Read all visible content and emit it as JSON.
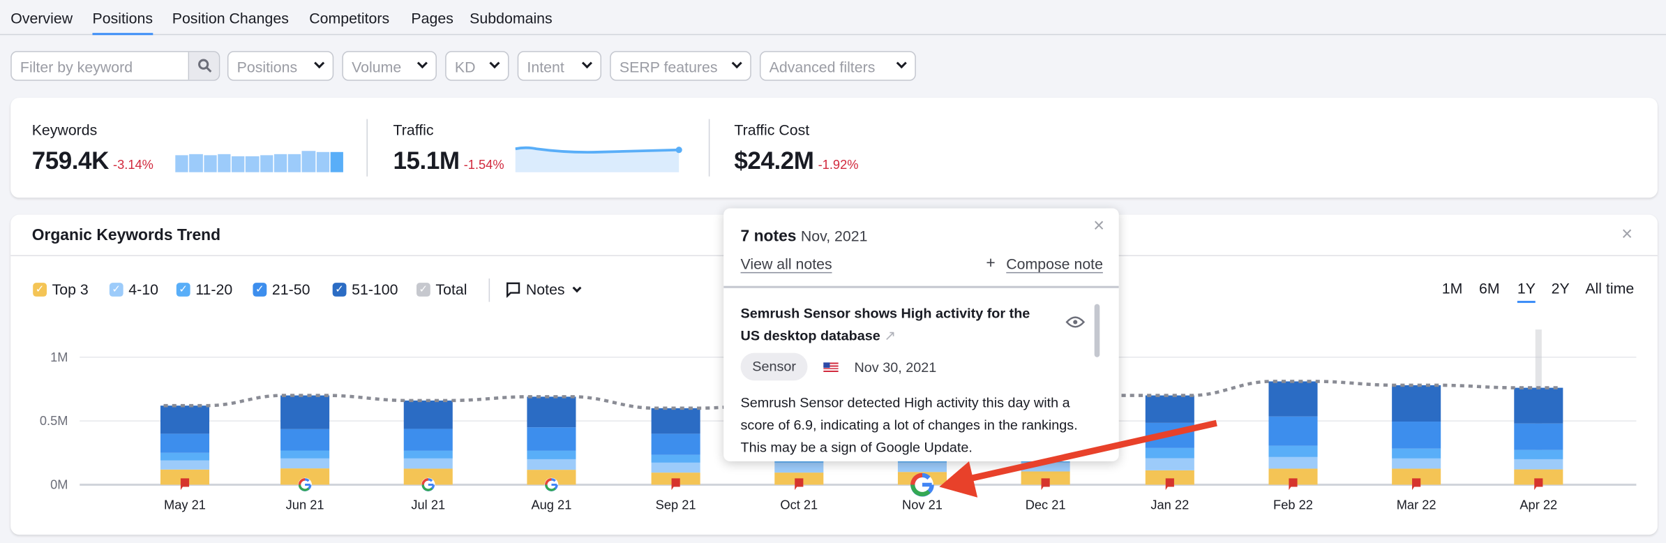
{
  "tabs": [
    "Overview",
    "Positions",
    "Position Changes",
    "Competitors",
    "Pages",
    "Subdomains"
  ],
  "active_tab": "Positions",
  "filters": {
    "search_placeholder": "Filter by keyword",
    "dropdowns": [
      "Positions",
      "Volume",
      "KD",
      "Intent",
      "SERP features",
      "Advanced filters"
    ]
  },
  "summary": {
    "keywords": {
      "label": "Keywords",
      "value": "759.4K",
      "change": "-3.14%",
      "spark": [
        0.72,
        0.78,
        0.74,
        0.76,
        0.68,
        0.7,
        0.74,
        0.78,
        0.77,
        0.9,
        0.88,
        0.85
      ]
    },
    "traffic": {
      "label": "Traffic",
      "value": "15.1M",
      "change": "-1.54%"
    },
    "traffic_cost": {
      "label": "Traffic Cost",
      "value": "$24.2M",
      "change": "-1.92%"
    }
  },
  "trend": {
    "title": "Organic Keywords Trend",
    "legend": [
      {
        "label": "Top 3",
        "color": "#f4c455"
      },
      {
        "label": "4-10",
        "color": "#9ccbfa"
      },
      {
        "label": "11-20",
        "color": "#59aef8"
      },
      {
        "label": "21-50",
        "color": "#3d8eed"
      },
      {
        "label": "51-100",
        "color": "#2b6cc4"
      },
      {
        "label": "Total",
        "color": "#c6c8ce"
      }
    ],
    "notes_label": "Notes",
    "ranges": [
      "1M",
      "6M",
      "1Y",
      "2Y",
      "All time"
    ],
    "active_range": "1Y"
  },
  "chart_data": {
    "type": "bar",
    "stacked": true,
    "categories": [
      "May 21",
      "Jun 21",
      "Jul 21",
      "Aug 21",
      "Sep 21",
      "Oct 21",
      "Nov 21",
      "Dec 21",
      "Jan 22",
      "Feb 22",
      "Mar 22",
      "Apr 22"
    ],
    "yticks": [
      "0M",
      "0.5M",
      "1M"
    ],
    "ylim": [
      0,
      1000000
    ],
    "series": [
      {
        "name": "Top 3",
        "values": [
          119000,
          128000,
          126000,
          117000,
          95000,
          95000,
          100000,
          104000,
          113000,
          126000,
          126000,
          120000
        ]
      },
      {
        "name": "4-10",
        "values": [
          71000,
          78000,
          80000,
          83000,
          78000,
          78000,
          75000,
          71000,
          95000,
          91000,
          80000,
          80000
        ]
      },
      {
        "name": "11-20",
        "values": [
          60000,
          62000,
          60000,
          66000,
          61000,
          60000,
          62000,
          64000,
          80000,
          88000,
          77000,
          72000
        ]
      },
      {
        "name": "21-50",
        "values": [
          150000,
          168000,
          172000,
          184000,
          166000,
          170000,
          175000,
          190000,
          197000,
          230000,
          212000,
          208000
        ]
      },
      {
        "name": "51-100",
        "values": [
          220000,
          264000,
          222000,
          240000,
          200000,
          227000,
          248000,
          271000,
          215000,
          275000,
          285000,
          280000
        ]
      }
    ],
    "total": [
      620000,
      700000,
      660000,
      690000,
      600000,
      630000,
      660000,
      700000,
      700000,
      810000,
      780000,
      760000
    ],
    "note_markers": [
      "flag",
      "google",
      "google",
      "google",
      "flag",
      "flag",
      "google",
      "flag",
      "flag",
      "flag",
      "flag",
      "flag"
    ]
  },
  "popup": {
    "count": "7 notes",
    "month": "Nov, 2021",
    "view_all": "View all notes",
    "compose": "Compose note",
    "note": {
      "title": "Semrush Sensor shows High activity for the US desktop database",
      "tag": "Sensor",
      "date": "Nov 30, 2021",
      "body": "Semrush Sensor detected High activity this day with a score of 6.9, indicating a lot of changes in the rankings. This may be a sign of Google Update."
    }
  }
}
